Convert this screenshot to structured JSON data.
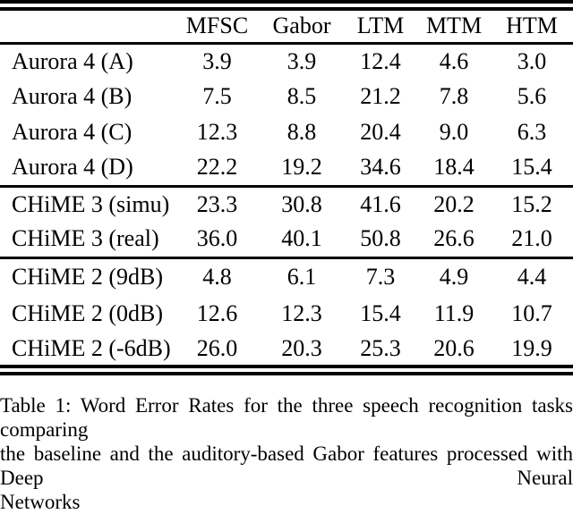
{
  "table": {
    "columns": [
      "MFSC",
      "Gabor",
      "LTM",
      "MTM",
      "HTM"
    ],
    "groups": [
      {
        "name": "Aurora 4",
        "rows": [
          {
            "label": "Aurora 4 (A)",
            "values": [
              "3.9",
              "3.9",
              "12.4",
              "4.6",
              "3.0"
            ]
          },
          {
            "label": "Aurora 4 (B)",
            "values": [
              "7.5",
              "8.5",
              "21.2",
              "7.8",
              "5.6"
            ]
          },
          {
            "label": "Aurora 4 (C)",
            "values": [
              "12.3",
              "8.8",
              "20.4",
              "9.0",
              "6.3"
            ]
          },
          {
            "label": "Aurora 4 (D)",
            "values": [
              "22.2",
              "19.2",
              "34.6",
              "18.4",
              "15.4"
            ]
          }
        ]
      },
      {
        "name": "CHiME 3",
        "rows": [
          {
            "label": "CHiME 3 (simu)",
            "values": [
              "23.3",
              "30.8",
              "41.6",
              "20.2",
              "15.2"
            ]
          },
          {
            "label": "CHiME 3 (real)",
            "values": [
              "36.0",
              "40.1",
              "50.8",
              "26.6",
              "21.0"
            ]
          }
        ]
      },
      {
        "name": "CHiME 2",
        "rows": [
          {
            "label": "CHiME 2 (9dB)",
            "values": [
              "4.8",
              "6.1",
              "7.3",
              "4.9",
              "4.4"
            ]
          },
          {
            "label": "CHiME 2 (0dB)",
            "values": [
              "12.6",
              "12.3",
              "15.4",
              "11.9",
              "10.7"
            ]
          },
          {
            "label": "CHiME 2 (-6dB)",
            "values": [
              "26.0",
              "20.3",
              "25.3",
              "20.6",
              "19.9"
            ]
          }
        ]
      }
    ]
  },
  "caption": {
    "full_text": "Table 1: Word Error Rates for the three speech recognition tasks comparing the baseline and the auditory-based Gabor features processed with Deep Neural Networks",
    "lines": [
      "Table 1: Word Error Rates for the three speech recognition tasks comparing",
      "the baseline and the auditory-based Gabor features processed with Deep Neural",
      "Networks"
    ]
  },
  "colors": {
    "text": "#000000",
    "background": "#ffffff",
    "rule": "#000000"
  }
}
